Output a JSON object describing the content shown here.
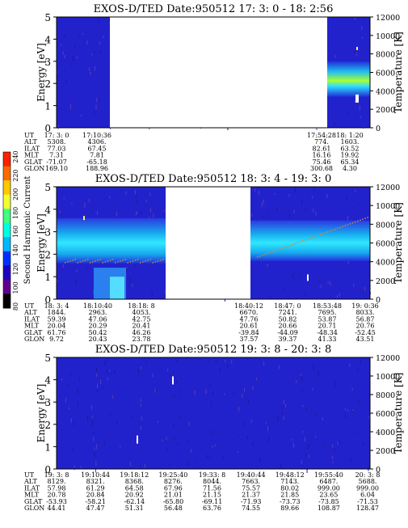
{
  "figure": {
    "colorbar": {
      "label": "Second Harmonic Current",
      "ticks": [
        "240",
        "220",
        "200",
        "180",
        "160",
        "140",
        "120",
        "100",
        "80"
      ],
      "colors": [
        "#ff2000",
        "#ff6a00",
        "#ffc800",
        "#f0ff30",
        "#40ff80",
        "#00ffe0",
        "#00b8ff",
        "#0030ff",
        "#2000c0",
        "#600090",
        "#000000"
      ]
    },
    "colors": {
      "background": "#2222cc",
      "gap": "#ffffff",
      "hot": "#22e0ff",
      "hotter": "#a0ff40",
      "dots": "#cc8844"
    }
  },
  "chart_data": [
    {
      "type": "heatmap",
      "title": "EXOS-D/TED   Date:950512  17: 3: 0 - 18: 2:56",
      "ylabel": "Energy [eV]",
      "ylabel_right": "Temperature [K]",
      "ylim": [
        0,
        5
      ],
      "ylim_right": [
        0,
        12000
      ],
      "yticks": [
        "0",
        "1",
        "2",
        "3",
        "4",
        "5"
      ],
      "yticks_right": [
        "0",
        "2000",
        "4000",
        "6000",
        "8000",
        "10000",
        "12000"
      ],
      "data_gaps": [
        [
          "17:10:36",
          "17:54:28"
        ]
      ],
      "rows": [
        {
          "label": "UT",
          "values": [
            "17: 3: 0",
            "17:10:36",
            "17:54:28",
            "18: 1:20"
          ]
        },
        {
          "label": "ALT",
          "values": [
            "5308.",
            "4306.",
            "774.",
            "1603."
          ]
        },
        {
          "label": "ILAT",
          "values": [
            "77.03",
            "67.45",
            "82.61",
            "63.52"
          ]
        },
        {
          "label": "MLT",
          "values": [
            "7.31",
            "7.81",
            "16.16",
            "19.92"
          ]
        },
        {
          "label": "GLAT",
          "values": [
            "-71.07",
            "-65.18",
            "75.46",
            "65.34"
          ]
        },
        {
          "label": "GLON",
          "values": [
            "169.10",
            "188.96",
            "300.68",
            "4.30"
          ]
        }
      ]
    },
    {
      "type": "heatmap",
      "title": "EXOS-D/TED   Date:950512  18: 3: 4 - 19: 3: 0",
      "ylabel": "Energy [eV]",
      "ylabel_right": "Temperature [K]",
      "ylim": [
        0,
        5
      ],
      "ylim_right": [
        0,
        12000
      ],
      "yticks": [
        "0",
        "1",
        "2",
        "3",
        "4",
        "5"
      ],
      "yticks_right": [
        "0",
        "2000",
        "4000",
        "6000",
        "8000",
        "10000",
        "12000"
      ],
      "data_gaps": [
        [
          "18:18: 8",
          "18:40:12"
        ]
      ],
      "rows": [
        {
          "label": "UT",
          "values": [
            "18: 3: 4",
            "18:10:40",
            "18:18: 8",
            "18:40:12",
            "18:47: 0",
            "18:53:48",
            "19: 0:36"
          ]
        },
        {
          "label": "ALT",
          "values": [
            "1844.",
            "2963.",
            "4053.",
            "6670.",
            "7241.",
            "7695.",
            "8033."
          ]
        },
        {
          "label": "ILAT",
          "values": [
            "59.39",
            "47.06",
            "42.75",
            "47.76",
            "50.82",
            "53.87",
            "56.87"
          ]
        },
        {
          "label": "MLT",
          "values": [
            "20.04",
            "20.29",
            "20.41",
            "20.61",
            "20.66",
            "20.71",
            "20.76"
          ]
        },
        {
          "label": "GLAT",
          "values": [
            "61.76",
            "50.42",
            "46.26",
            "-39.84",
            "-44.09",
            "-48.34",
            "-52.45"
          ]
        },
        {
          "label": "GLON",
          "values": [
            "9.72",
            "20.43",
            "23.78",
            "37.57",
            "39.37",
            "41.33",
            "43.51"
          ]
        }
      ]
    },
    {
      "type": "heatmap",
      "title": "EXOS-D/TED   Date:950512  19: 3: 8 - 20: 3: 8",
      "ylabel": "Energy [eV]",
      "ylabel_right": "Temperature [K]",
      "ylim": [
        0,
        5
      ],
      "ylim_right": [
        0,
        12000
      ],
      "yticks": [
        "0",
        "1",
        "2",
        "3",
        "4",
        "5"
      ],
      "yticks_right": [
        "0",
        "2000",
        "4000",
        "6000",
        "8000",
        "10000",
        "12000"
      ],
      "data_gaps": [],
      "rows": [
        {
          "label": "UT",
          "values": [
            "19: 3: 8",
            "19:10:44",
            "19:18:12",
            "19:25:40",
            "19:33: 8",
            "19:40:44",
            "19:48:12",
            "19:55:40",
            "20: 3: 8"
          ]
        },
        {
          "label": "ALT",
          "values": [
            "8129.",
            "8321.",
            "8368.",
            "8276.",
            "8044.",
            "7663.",
            "7143.",
            "6487.",
            "5688."
          ]
        },
        {
          "label": "ILAT",
          "values": [
            "57.98",
            "61.29",
            "64.58",
            "67.96",
            "71.56",
            "75.57",
            "80.02",
            "999.00",
            "999.00"
          ]
        },
        {
          "label": "MLT",
          "values": [
            "20.78",
            "20.84",
            "20.92",
            "21.01",
            "21.15",
            "21.37",
            "21.85",
            "23.65",
            "6.04"
          ]
        },
        {
          "label": "GLAT",
          "values": [
            "-53.93",
            "-58.21",
            "-62.14",
            "-65.80",
            "-69.11",
            "-71.93",
            "-73.73",
            "-73.85",
            "-71.53"
          ]
        },
        {
          "label": "GLON",
          "values": [
            "44.41",
            "47.47",
            "51.31",
            "56.48",
            "63.76",
            "74.55",
            "89.66",
            "108.87",
            "128.47"
          ]
        }
      ]
    }
  ]
}
